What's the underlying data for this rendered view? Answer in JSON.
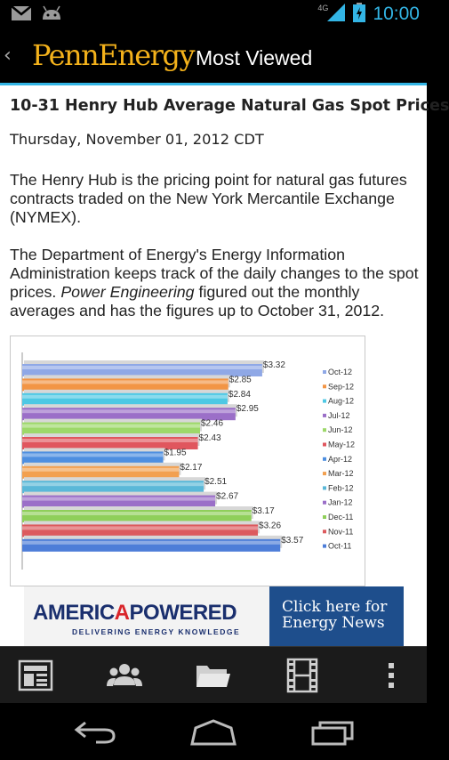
{
  "status_bar": {
    "time": "10:00",
    "network": "4G",
    "icons": [
      "gmail-icon",
      "android-icon",
      "signal-icon",
      "battery-icon"
    ]
  },
  "action_bar": {
    "logo": "PennEnergy",
    "title": "Most Viewed"
  },
  "article": {
    "title": "10-31 Henry Hub Average Natural Gas Spot Prices",
    "date": "Thursday, November 01, 2012 CDT",
    "paragraph1": "The Henry Hub is the pricing point for natural gas futures contracts traded on the New York Mercantile Exchange (NYMEX).",
    "paragraph2_before": "The Department of Energy's Energy Information Administration keeps track of the daily changes to the spot prices. ",
    "paragraph2_italic": "Power Engineering",
    "paragraph2_after": " figured out the monthly averages and has the figures up to October 31, 2012."
  },
  "chart_data": {
    "type": "bar",
    "orientation": "horizontal",
    "categories": [
      "Oct-12",
      "Sep-12",
      "Aug-12",
      "Jul-12",
      "Jun-12",
      "May-12",
      "Apr-12",
      "Mar-12",
      "Feb-12",
      "Jan-12",
      "Dec-11",
      "Nov-11",
      "Oct-11"
    ],
    "values": [
      3.32,
      2.85,
      2.84,
      2.95,
      2.46,
      2.43,
      1.95,
      2.17,
      2.51,
      2.67,
      3.17,
      3.26,
      3.57
    ],
    "data_labels": [
      "$3.32",
      "$2.85",
      "$2.84",
      "$2.95",
      "$2.46",
      "$2.43",
      "$1.95",
      "$2.17",
      "$2.51",
      "$2.67",
      "$3.17",
      "$3.26",
      "$3.57"
    ],
    "colors": [
      "#8fa8e6",
      "#f29545",
      "#4ec8e4",
      "#9b6fc8",
      "#9dd86a",
      "#e0565e",
      "#4e8fe0",
      "#f2a050",
      "#5ab8d8",
      "#9b6fc8",
      "#8fcf5a",
      "#dc5a5e",
      "#4d7dd8"
    ],
    "legend_position": "right",
    "grid": false
  },
  "ad": {
    "brand_prefix": "AMERIC",
    "brand_accent": "A",
    "brand_suffix": "POWERED",
    "tagline": "DELIVERING ENERGY KNOWLEDGE",
    "cta_line1": "Click here for",
    "cta_line2": "Energy News"
  },
  "toolbar": {
    "buttons": [
      "newspaper-icon",
      "people-icon",
      "folder-icon",
      "film-icon",
      "overflow-menu-icon"
    ]
  },
  "navbar": {
    "buttons": [
      "back-icon",
      "home-icon",
      "recent-apps-icon"
    ]
  }
}
